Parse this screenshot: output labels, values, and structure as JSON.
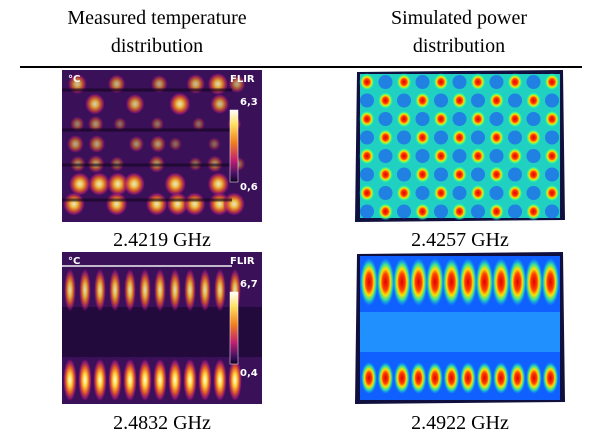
{
  "table": {
    "headers": [
      "Measured temperature distribution",
      "Simulated power distribution"
    ],
    "rows": [
      {
        "measured": {
          "unit": "°C",
          "brand": "FLIR",
          "max": "6,3",
          "min": "0,6"
        },
        "measured_caption": "2.4219 GHz",
        "simulated_caption": "2.4257 GHz"
      },
      {
        "measured": {
          "unit": "°C",
          "brand": "FLIR",
          "max": "6,7",
          "min": "0,4"
        },
        "measured_caption": "2.4832 GHz",
        "simulated_caption": "2.4922 GHz"
      }
    ]
  }
}
